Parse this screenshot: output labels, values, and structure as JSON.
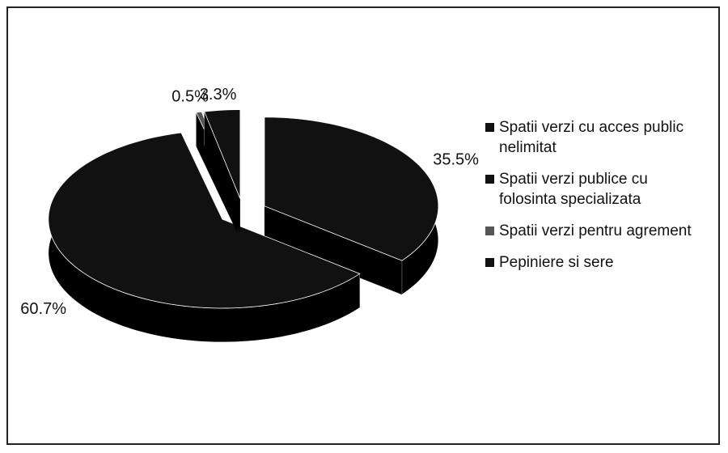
{
  "chart_data": {
    "type": "pie",
    "categories": [
      "Spatii verzi cu acces public nelimitat",
      "Spatii verzi publice cu folosinta specializata",
      "Spatii verzi pentru agrement",
      "Pepiniere si sere"
    ],
    "values": [
      35.5,
      60.7,
      0.5,
      3.3
    ],
    "value_labels": [
      "35.5%",
      "60.7%",
      "0.5%",
      "3.3%"
    ],
    "colors": [
      "#111111",
      "#111111",
      "#555555",
      "#111111"
    ],
    "legend": "right"
  }
}
